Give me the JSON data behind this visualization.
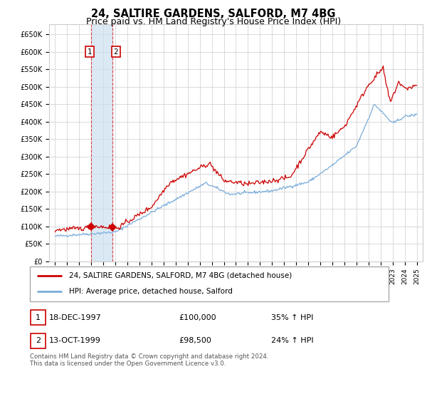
{
  "title": "24, SALTIRE GARDENS, SALFORD, M7 4BG",
  "subtitle": "Price paid vs. HM Land Registry's House Price Index (HPI)",
  "title_fontsize": 10.5,
  "subtitle_fontsize": 9,
  "background_color": "#ffffff",
  "plot_bg_color": "#ffffff",
  "grid_color": "#cccccc",
  "red_line_color": "#cc0000",
  "blue_line_color": "#7aaddb",
  "purchase1_date_year": 1997.96,
  "purchase1_price": 100000,
  "purchase2_date_year": 1999.78,
  "purchase2_price": 98500,
  "legend_entry1": "24, SALTIRE GARDENS, SALFORD, M7 4BG (detached house)",
  "legend_entry2": "HPI: Average price, detached house, Salford",
  "table_row1_date": "18-DEC-1997",
  "table_row1_price": "£100,000",
  "table_row1_hpi": "35% ↑ HPI",
  "table_row2_date": "13-OCT-1999",
  "table_row2_price": "£98,500",
  "table_row2_hpi": "24% ↑ HPI",
  "footer": "Contains HM Land Registry data © Crown copyright and database right 2024.\nThis data is licensed under the Open Government Licence v3.0.",
  "ylim": [
    0,
    680000
  ],
  "yticks": [
    0,
    50000,
    100000,
    150000,
    200000,
    250000,
    300000,
    350000,
    400000,
    450000,
    500000,
    550000,
    600000,
    650000
  ]
}
